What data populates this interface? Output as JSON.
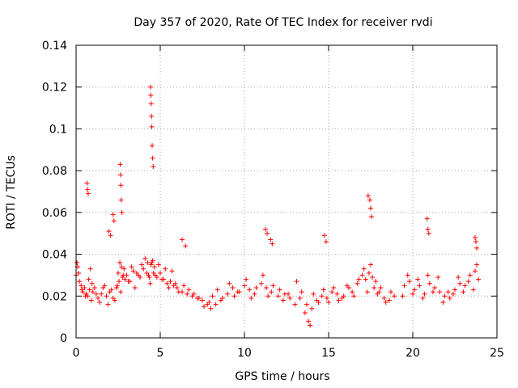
{
  "chart_data": {
    "type": "scatter",
    "title": "Day 357 of 2020, Rate Of TEC Index for receiver rvdi",
    "xlabel": "GPS time / hours",
    "ylabel": "ROTI / TECUs",
    "xlim": [
      0,
      25
    ],
    "ylim": [
      0,
      0.14
    ],
    "xticks": [
      "0",
      "5",
      "10",
      "15",
      "20",
      "25"
    ],
    "yticks": [
      "0",
      "0.02",
      "0.04",
      "0.06",
      "0.08",
      "0.1",
      "0.12",
      "0.14"
    ],
    "grid": true,
    "marker": "plus",
    "color": "#ff0000",
    "series": [
      {
        "x": [
          0.0,
          0.1,
          0.2,
          0.3,
          0.4,
          0.5,
          0.6,
          0.7,
          0.8,
          0.9,
          1.0,
          1.2,
          1.4,
          1.6,
          1.8,
          2.0,
          2.2,
          2.4,
          2.5,
          2.6,
          2.7,
          2.8,
          2.9,
          3.0,
          3.2,
          3.4,
          3.6,
          3.8,
          4.0,
          4.2,
          4.3,
          4.4,
          4.5,
          4.6,
          4.7,
          4.8,
          5.0,
          5.2,
          5.4,
          5.6,
          5.8,
          6.0,
          6.3,
          6.6,
          6.9,
          7.2,
          7.5,
          7.8,
          8.0,
          8.3,
          8.6,
          9.0,
          9.3,
          9.6,
          10.0,
          10.3,
          10.6,
          11.0,
          11.3,
          11.6,
          12.0,
          12.3,
          12.6,
          13.0,
          13.3,
          13.6,
          13.8,
          14.0,
          14.3,
          14.6,
          14.9,
          15.2,
          15.5,
          15.8,
          16.1,
          16.4,
          16.7,
          17.0,
          17.2,
          17.4,
          17.6,
          17.8,
          18.0,
          18.3,
          18.6,
          18.9,
          19.5,
          19.8,
          20.1,
          20.4,
          20.7,
          21.0,
          21.3,
          21.6,
          21.9,
          22.2,
          22.5,
          22.8,
          23.1,
          23.4,
          23.7,
          23.9,
          0.05,
          0.15,
          0.35,
          0.55,
          0.75,
          0.85,
          0.95,
          1.1,
          1.3,
          1.5,
          1.7,
          1.9,
          2.1,
          2.3,
          2.45,
          2.55,
          2.65,
          2.75,
          2.85,
          3.1,
          3.3,
          3.5,
          3.7,
          3.9,
          4.1,
          4.25,
          4.35,
          4.45,
          4.55,
          4.65,
          4.9,
          5.1,
          5.3,
          5.5,
          5.7,
          5.9,
          6.1,
          6.4,
          6.7,
          7.0,
          7.3,
          7.6,
          7.9,
          8.1,
          8.4,
          8.7,
          9.1,
          9.4,
          9.7,
          10.1,
          10.4,
          10.7,
          11.1,
          11.4,
          11.7,
          12.1,
          12.4,
          12.7,
          13.1,
          13.4,
          13.7,
          13.9,
          14.1,
          14.4,
          14.7,
          15.0,
          15.3,
          15.6,
          15.9,
          16.2,
          16.5,
          16.8,
          17.1,
          17.3,
          17.5,
          17.7,
          17.9,
          18.1,
          18.4,
          18.7,
          19.4,
          19.7,
          20.0,
          20.3,
          20.6,
          20.9,
          21.2,
          21.5,
          21.8,
          22.1,
          22.4,
          22.7,
          23.0,
          23.3,
          23.6,
          23.8,
          4.42,
          4.44,
          4.46,
          4.48,
          4.5,
          4.52,
          4.55,
          4.58,
          2.62,
          2.64,
          2.66,
          2.68,
          2.72,
          0.65,
          0.68,
          0.72,
          17.35,
          17.45,
          17.5,
          17.55,
          20.85,
          20.9,
          20.95,
          14.75,
          14.85,
          11.25,
          11.35,
          11.55,
          11.65,
          23.7,
          23.75,
          23.8,
          2.2,
          2.25,
          1.95,
          2.05,
          6.3,
          6.5
        ],
        "y": [
          0.03,
          0.034,
          0.027,
          0.025,
          0.022,
          0.024,
          0.021,
          0.02,
          0.023,
          0.018,
          0.022,
          0.021,
          0.017,
          0.024,
          0.02,
          0.022,
          0.019,
          0.024,
          0.031,
          0.036,
          0.034,
          0.03,
          0.028,
          0.03,
          0.027,
          0.032,
          0.031,
          0.029,
          0.033,
          0.031,
          0.03,
          0.026,
          0.036,
          0.031,
          0.03,
          0.029,
          0.031,
          0.028,
          0.026,
          0.027,
          0.025,
          0.024,
          0.022,
          0.021,
          0.02,
          0.019,
          0.018,
          0.016,
          0.014,
          0.016,
          0.018,
          0.021,
          0.024,
          0.022,
          0.025,
          0.023,
          0.021,
          0.026,
          0.024,
          0.022,
          0.02,
          0.018,
          0.021,
          0.016,
          0.019,
          0.012,
          0.008,
          0.014,
          0.018,
          0.02,
          0.019,
          0.022,
          0.021,
          0.019,
          0.025,
          0.022,
          0.026,
          0.03,
          0.028,
          0.031,
          0.029,
          0.027,
          0.022,
          0.019,
          0.018,
          0.02,
          0.025,
          0.027,
          0.023,
          0.025,
          0.021,
          0.026,
          0.024,
          0.022,
          0.02,
          0.019,
          0.023,
          0.026,
          0.025,
          0.03,
          0.032,
          0.028,
          0.036,
          0.031,
          0.023,
          0.02,
          0.028,
          0.033,
          0.026,
          0.024,
          0.019,
          0.021,
          0.025,
          0.016,
          0.023,
          0.018,
          0.025,
          0.027,
          0.022,
          0.029,
          0.033,
          0.027,
          0.034,
          0.024,
          0.03,
          0.035,
          0.038,
          0.036,
          0.029,
          0.035,
          0.037,
          0.034,
          0.035,
          0.028,
          0.033,
          0.024,
          0.032,
          0.026,
          0.022,
          0.025,
          0.023,
          0.021,
          0.019,
          0.015,
          0.017,
          0.02,
          0.023,
          0.019,
          0.026,
          0.02,
          0.022,
          0.028,
          0.019,
          0.024,
          0.03,
          0.02,
          0.025,
          0.023,
          0.021,
          0.019,
          0.027,
          0.022,
          0.016,
          0.006,
          0.021,
          0.017,
          0.023,
          0.017,
          0.024,
          0.018,
          0.02,
          0.024,
          0.02,
          0.028,
          0.033,
          0.022,
          0.035,
          0.024,
          0.021,
          0.024,
          0.017,
          0.022,
          0.02,
          0.03,
          0.021,
          0.028,
          0.019,
          0.03,
          0.022,
          0.029,
          0.017,
          0.022,
          0.021,
          0.029,
          0.022,
          0.027,
          0.023,
          0.035,
          0.12,
          0.116,
          0.112,
          0.106,
          0.101,
          0.092,
          0.086,
          0.082,
          0.083,
          0.078,
          0.073,
          0.066,
          0.06,
          0.074,
          0.071,
          0.069,
          0.068,
          0.066,
          0.062,
          0.058,
          0.057,
          0.052,
          0.05,
          0.049,
          0.046,
          0.052,
          0.05,
          0.047,
          0.045,
          0.048,
          0.046,
          0.043,
          0.059,
          0.056,
          0.051,
          0.049,
          0.047,
          0.044
        ]
      }
    ]
  }
}
